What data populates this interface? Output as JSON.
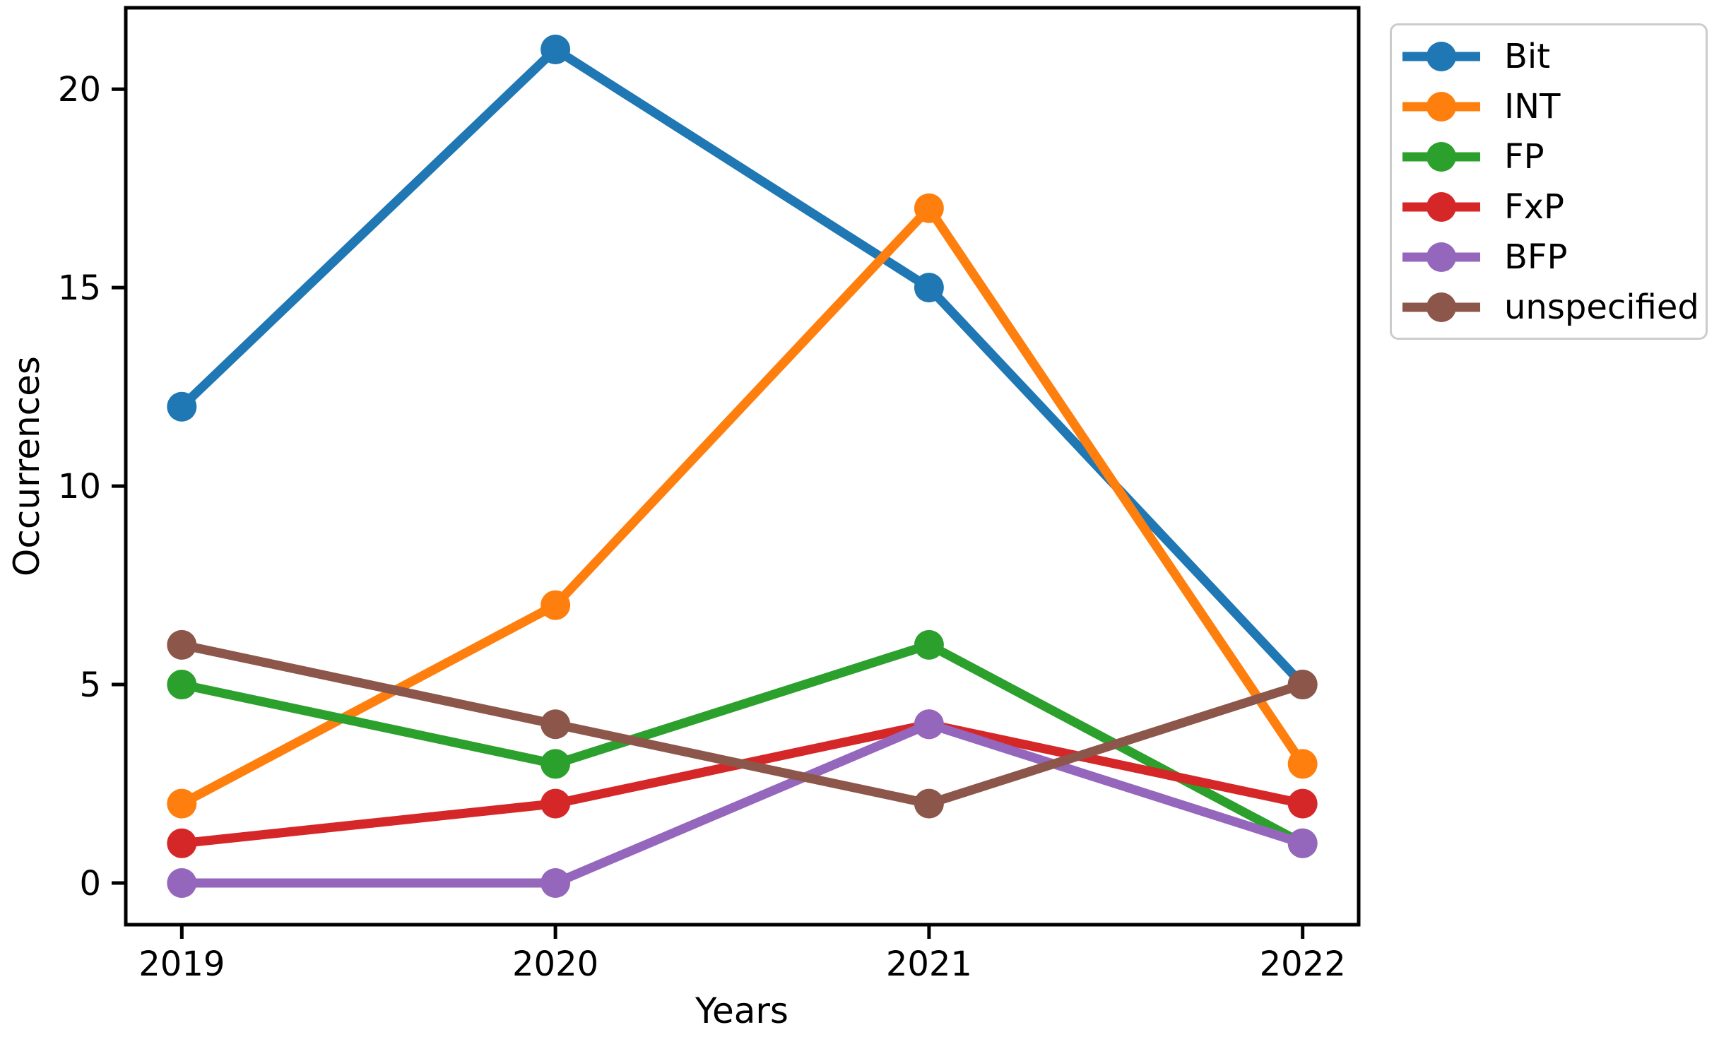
{
  "chart_data": {
    "type": "line",
    "title": "",
    "xlabel": "Years",
    "ylabel": "Occurrences",
    "categories": [
      "2019",
      "2020",
      "2021",
      "2022"
    ],
    "series": [
      {
        "name": "Bit",
        "color": "#1f77b4",
        "values": [
          12,
          21,
          15,
          5
        ]
      },
      {
        "name": "INT",
        "color": "#ff7f0e",
        "values": [
          2,
          7,
          17,
          3
        ]
      },
      {
        "name": "FP",
        "color": "#2ca02c",
        "values": [
          5,
          3,
          6,
          1
        ]
      },
      {
        "name": "FxP",
        "color": "#d62728",
        "values": [
          1,
          2,
          4,
          2
        ]
      },
      {
        "name": "BFP",
        "color": "#9467bd",
        "values": [
          0,
          0,
          4,
          1
        ]
      },
      {
        "name": "unspecified",
        "color": "#8c564b",
        "values": [
          6,
          4,
          2,
          5
        ]
      }
    ],
    "yticks": [
      0,
      5,
      10,
      15,
      20
    ],
    "ylim": [
      -1.05,
      22.05
    ],
    "xlim": [
      -0.15,
      3.15
    ],
    "grid": false,
    "legend_position": "outside-upper-right",
    "marker": "circle",
    "line_style": "solid"
  },
  "style_colors": {
    "spine": "#000000",
    "tick_text": "#000000",
    "legend_border": "#cccccc",
    "background": "#ffffff"
  }
}
